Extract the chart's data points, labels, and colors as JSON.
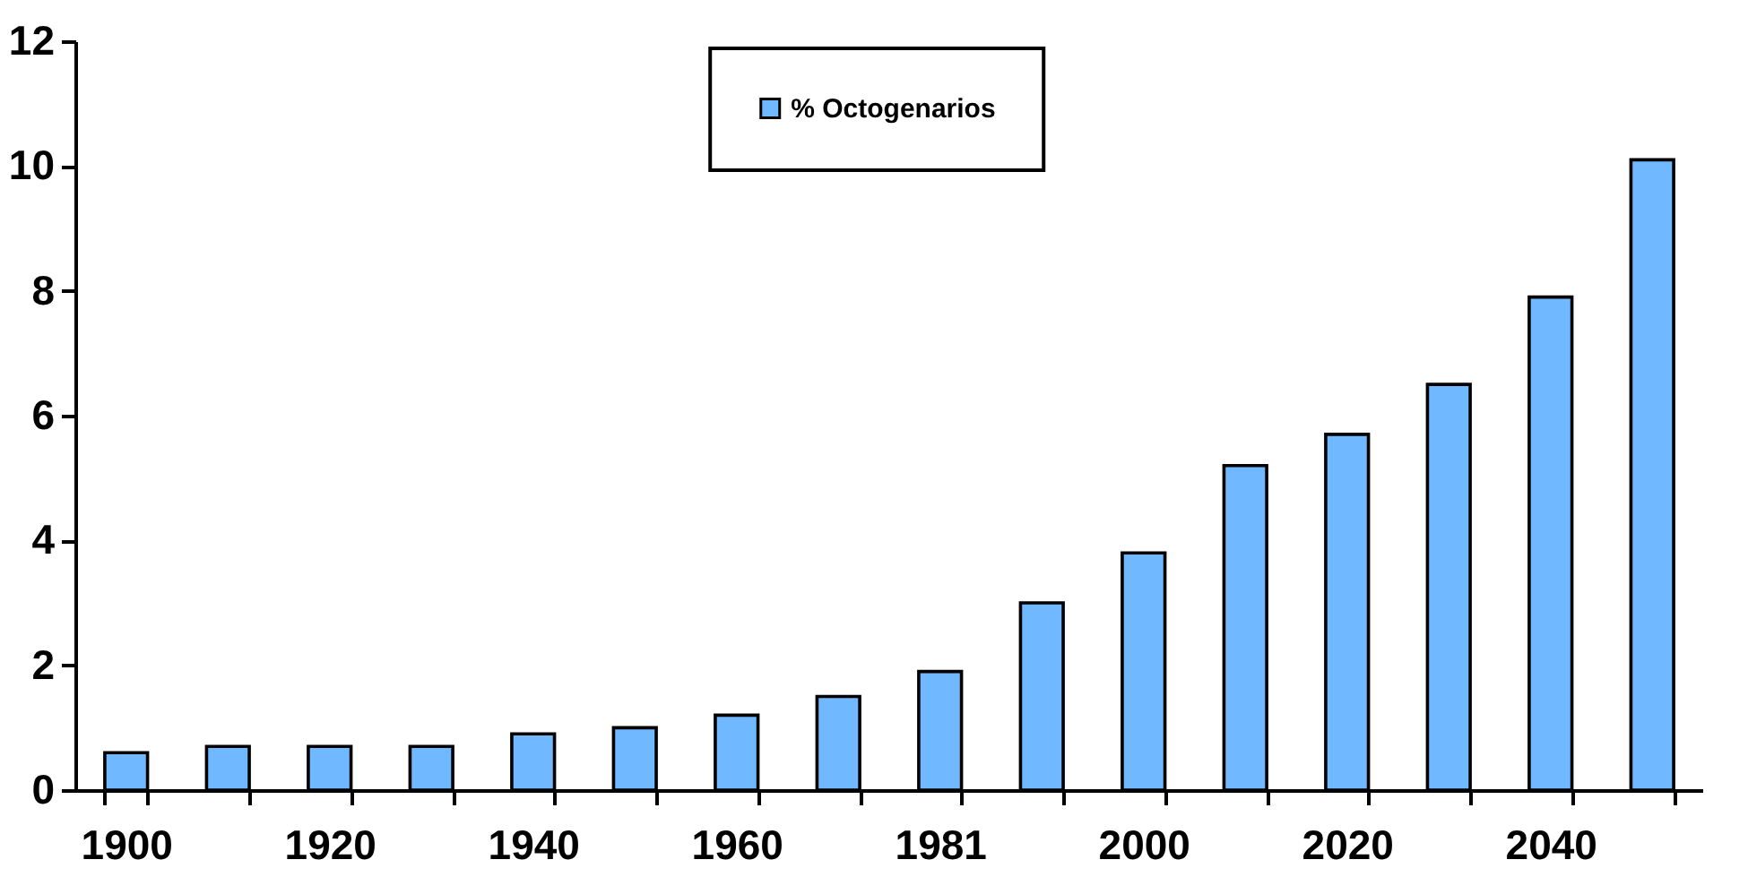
{
  "chart_data": {
    "type": "bar",
    "categories": [
      "1900",
      null,
      "1920",
      null,
      "1940",
      null,
      "1960",
      null,
      "1981",
      null,
      "2000",
      null,
      "2020",
      null,
      "2040",
      null
    ],
    "series": [
      {
        "name": "% Octogenarios",
        "color": "#70b8ff",
        "values": [
          0.6,
          0.7,
          0.7,
          0.7,
          0.9,
          1.0,
          1.2,
          1.5,
          1.9,
          3.0,
          3.8,
          5.2,
          5.7,
          6.5,
          7.9,
          10.1
        ]
      }
    ],
    "ylim": [
      0,
      12
    ],
    "yticks": [
      0,
      2,
      4,
      6,
      8,
      10,
      12
    ],
    "legend": "top"
  }
}
